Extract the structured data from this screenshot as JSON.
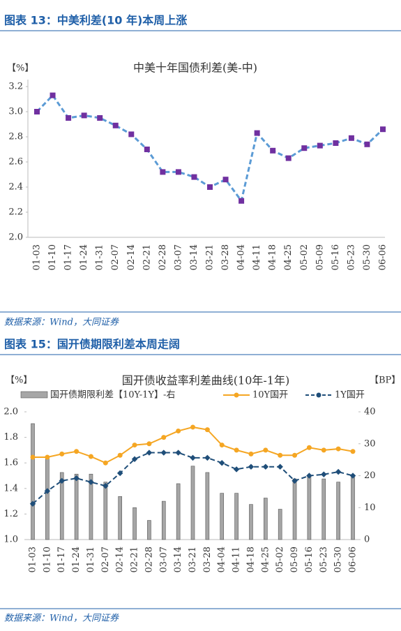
{
  "chart_data": [
    {
      "type": "line",
      "heading": "图表 13：中美利差(10 年)本周上涨",
      "title": "中美十年国债利差(美-中)",
      "ylabel": "【%】",
      "categories": [
        "01-03",
        "01-10",
        "01-17",
        "01-24",
        "01-31",
        "02-07",
        "02-14",
        "02-21",
        "02-28",
        "03-07",
        "03-14",
        "03-21",
        "03-28",
        "04-04",
        "04-11",
        "04-18",
        "04-25",
        "05-02",
        "05-09",
        "05-16",
        "05-23",
        "05-30",
        "06-06"
      ],
      "series": [
        {
          "color": "#5b9bd5",
          "marker_color": "#7030a0",
          "values": [
            3.0,
            3.13,
            2.95,
            2.97,
            2.95,
            2.89,
            2.82,
            2.7,
            2.52,
            2.52,
            2.48,
            2.4,
            2.46,
            2.29,
            2.83,
            2.69,
            2.63,
            2.71,
            2.73,
            2.75,
            2.79,
            2.74,
            2.86
          ]
        }
      ],
      "ylim": [
        2.0,
        3.2
      ],
      "yticks": [
        {
          "value": 2,
          "label": "2.0"
        },
        2.2,
        2.4,
        2.6,
        2.8,
        {
          "value": 3,
          "label": "3.0"
        },
        3.2
      ],
      "source": "数据来源：Wind，大同证券"
    },
    {
      "type": "combo",
      "heading": "图表 15：国开债期限利差本周走阔",
      "title": "国开债收益率利差曲线(10年-1年)",
      "ylabel": "【%】",
      "y2label": "【BP】",
      "categories": [
        "01-03",
        "01-10",
        "01-17",
        "01-24",
        "01-31",
        "02-07",
        "02-14",
        "02-21",
        "02-28",
        "03-07",
        "03-14",
        "03-21",
        "03-28",
        "04-04",
        "04-11",
        "04-18",
        "04-25",
        "05-02",
        "05-09",
        "05-16",
        "05-23",
        "05-30",
        "06-06"
      ],
      "series": [
        {
          "name": "国开债期限利差【10Y-1Y】-右",
          "type": "bar",
          "axis": "y2",
          "color": "#a6a6a6",
          "values": [
            36.3,
            25.6,
            21,
            20.5,
            20.5,
            18,
            13.5,
            10,
            6,
            12,
            17.5,
            23,
            21,
            14.5,
            14.5,
            11,
            13,
            9.5,
            19,
            20,
            19,
            18,
            19.5
          ]
        },
        {
          "name": "10Y国开",
          "type": "line",
          "color": "#f5a623",
          "values": [
            1.645,
            1.645,
            1.67,
            1.69,
            1.65,
            1.6,
            1.66,
            1.74,
            1.75,
            1.8,
            1.85,
            1.88,
            1.86,
            1.74,
            1.7,
            1.67,
            1.7,
            1.66,
            1.66,
            1.72,
            1.7,
            1.71,
            1.69
          ]
        },
        {
          "name": "1Y国开",
          "type": "line",
          "dashed": true,
          "color": "#1f4e79",
          "values": [
            1.28,
            1.38,
            1.46,
            1.48,
            1.45,
            1.42,
            1.52,
            1.63,
            1.68,
            1.68,
            1.68,
            1.64,
            1.64,
            1.6,
            1.55,
            1.57,
            1.57,
            1.57,
            1.46,
            1.5,
            1.51,
            1.53,
            1.5
          ]
        }
      ],
      "ylim": [
        1.0,
        2.0
      ],
      "yticks": [
        {
          "value": 1,
          "label": "1.0"
        },
        1.2,
        1.4,
        1.6,
        1.8,
        {
          "value": 2,
          "label": "2.0"
        }
      ],
      "y2lim": [
        0,
        40
      ],
      "y2ticks": [
        0,
        10,
        20,
        30,
        40
      ],
      "source": "数据来源：Wind，大同证券"
    }
  ]
}
